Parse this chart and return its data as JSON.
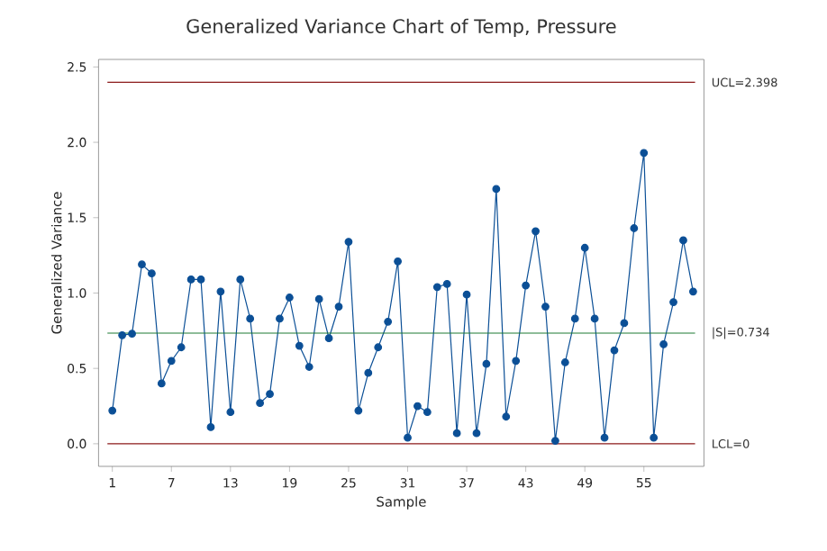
{
  "chart_data": {
    "type": "line",
    "title": "Generalized Variance Chart of Temp, Pressure",
    "xlabel": "Sample",
    "ylabel": "Generalized Variance",
    "x": [
      1,
      2,
      3,
      4,
      5,
      6,
      7,
      8,
      9,
      10,
      11,
      12,
      13,
      14,
      15,
      16,
      17,
      18,
      19,
      20,
      21,
      22,
      23,
      24,
      25,
      26,
      27,
      28,
      29,
      30,
      31,
      32,
      33,
      34,
      35,
      36,
      37,
      38,
      39,
      40,
      41,
      42,
      43,
      44,
      45,
      46,
      47,
      48,
      49,
      50,
      51,
      52,
      53,
      54,
      55,
      56,
      57,
      58,
      59,
      60
    ],
    "series": [
      {
        "color": "#0b4f96",
        "values": [
          0.22,
          0.72,
          0.73,
          1.19,
          1.13,
          0.4,
          0.55,
          0.64,
          1.09,
          1.09,
          0.11,
          1.01,
          0.21,
          1.09,
          0.83,
          0.27,
          0.33,
          0.83,
          0.97,
          0.65,
          0.51,
          0.96,
          0.7,
          0.91,
          1.34,
          0.22,
          0.47,
          0.64,
          0.81,
          1.21,
          0.04,
          0.25,
          0.21,
          1.04,
          1.06,
          0.07,
          0.99,
          0.07,
          0.53,
          1.69,
          0.18,
          0.55,
          1.05,
          1.41,
          0.91,
          0.02,
          0.54,
          0.83,
          1.3,
          0.83,
          0.04,
          0.62,
          0.8,
          1.43,
          1.93,
          0.04,
          0.66,
          0.94,
          1.35,
          1.01
        ]
      }
    ],
    "marker": "circle",
    "line_style": "solid",
    "grid": false,
    "xlim": [
      -0.4,
      61.1
    ],
    "ylim": [
      -0.15,
      2.55
    ],
    "xticks": [
      1,
      7,
      13,
      19,
      25,
      31,
      37,
      43,
      49,
      55
    ],
    "yticks": [
      {
        "value": 0,
        "label": "0.0"
      },
      {
        "value": 0.5,
        "label": "0.5"
      },
      {
        "value": 1,
        "label": "1.0"
      },
      {
        "value": 1.5,
        "label": "1.5"
      },
      {
        "value": 2,
        "label": "2.0"
      },
      {
        "value": 2.5,
        "label": "2.5"
      }
    ],
    "ref_lines": [
      {
        "axis": "y",
        "value": 2.398,
        "label": "UCL=2.398",
        "color": "#8b1a1a"
      },
      {
        "axis": "y",
        "value": 0.734,
        "label": "|S|=0.734",
        "color": "#1e7b34"
      },
      {
        "axis": "y",
        "value": 0,
        "label": "LCL=0",
        "color": "#8b1a1a"
      }
    ]
  }
}
